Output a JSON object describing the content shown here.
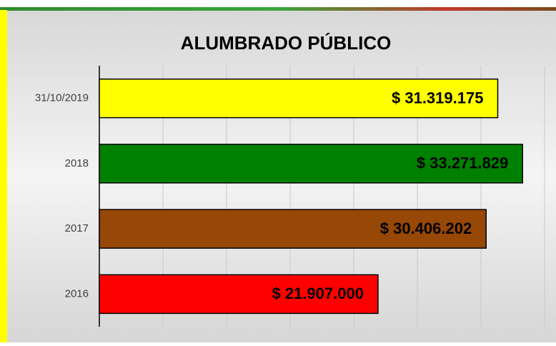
{
  "chart_data": {
    "type": "hbar",
    "title": "ALUMBRADO PÚBLICO",
    "categories": [
      "31/10/2019",
      "2018",
      "2017",
      "2016"
    ],
    "values": [
      31319175,
      33271829,
      30406202,
      21907000
    ],
    "value_labels": [
      "$ 31.319.175",
      "$ 33.271.829",
      "$ 30.406.202",
      "$ 21.907.000"
    ],
    "colors": [
      "#ffff00",
      "#008000",
      "#974706",
      "#ff0000"
    ],
    "xlim": [
      0,
      35000000
    ],
    "xticks": [
      0,
      5000000,
      10000000,
      15000000,
      20000000,
      25000000,
      30000000,
      35000000
    ],
    "grid": true
  }
}
